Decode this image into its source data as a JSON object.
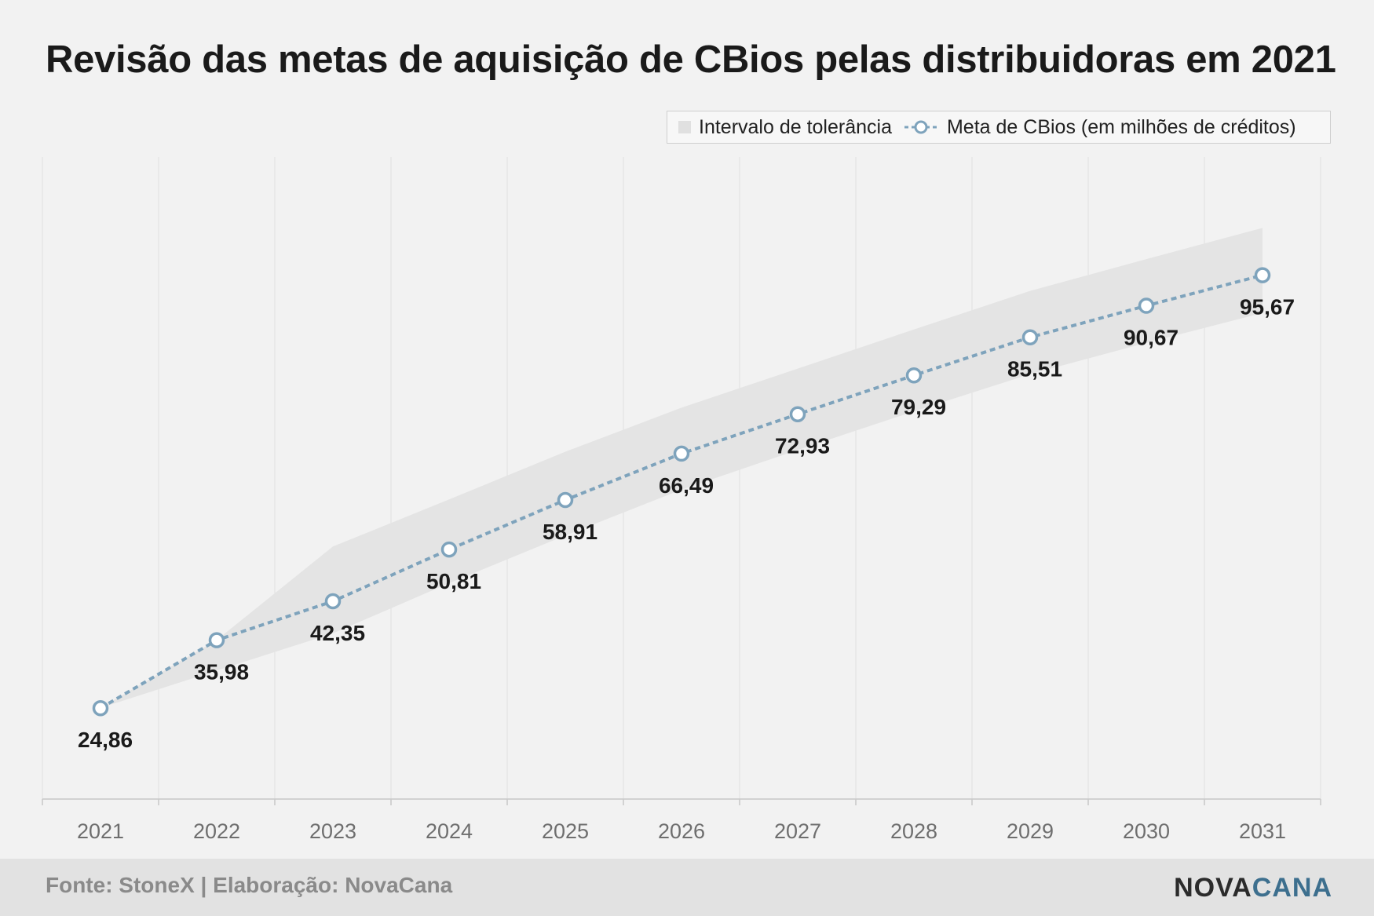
{
  "title": "Revisão das metas de aquisição de CBios pelas distribuidoras em 2021",
  "legend": {
    "band_label": "Intervalo de tolerância",
    "line_label": "Meta de CBios (em milhões de créditos)"
  },
  "footer": {
    "source": "Fonte: StoneX | Elaboração: NovaCana",
    "brand_part1": "NOVA",
    "brand_part2": "CANA"
  },
  "colors": {
    "line": "#7ea3bc",
    "band": "#e4e4e4",
    "grid": "#e0e0e0",
    "brand_accent": "#3d6f8e"
  },
  "chart_data": {
    "type": "line",
    "categories": [
      "2021",
      "2022",
      "2023",
      "2024",
      "2025",
      "2026",
      "2027",
      "2028",
      "2029",
      "2030",
      "2031"
    ],
    "series": [
      {
        "name": "Meta de CBios (em milhões de créditos)",
        "values": [
          24.86,
          35.98,
          42.35,
          50.81,
          58.91,
          66.49,
          72.93,
          79.29,
          85.51,
          90.67,
          95.67
        ],
        "labels": [
          "24,86",
          "35,98",
          "42,35",
          "50,81",
          "58,91",
          "66,49",
          "72,93",
          "79,29",
          "85,51",
          "90,67",
          "95,67"
        ]
      }
    ],
    "band": {
      "name": "Intervalo de tolerância",
      "upper": [
        24.9,
        36.0,
        51.3,
        59.0,
        66.8,
        74.0,
        80.4,
        86.8,
        93.1,
        98.3,
        103.4
      ],
      "lower": [
        24.9,
        31.0,
        37.1,
        45.3,
        53.1,
        60.6,
        67.1,
        73.4,
        79.5,
        84.6,
        89.5
      ]
    },
    "ylim": [
      10,
      115
    ],
    "grid": "vertical",
    "legend_position": "top-right"
  }
}
